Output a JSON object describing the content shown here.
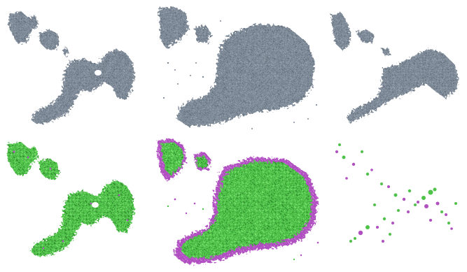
{
  "figure": {
    "panels": [
      {
        "id": "p1",
        "name": "panel-top-left",
        "coloring": "uniform",
        "particle_color": "#7e8a98"
      },
      {
        "id": "p2",
        "name": "panel-top-center",
        "coloring": "uniform",
        "particle_color": "#7e8a98"
      },
      {
        "id": "p3",
        "name": "panel-top-right",
        "coloring": "uniform",
        "particle_color": "#7e8a98"
      },
      {
        "id": "p4",
        "name": "panel-bottom-left",
        "coloring": "two-species",
        "colors": [
          "#4fc24a",
          "#b04fc0"
        ]
      },
      {
        "id": "p5",
        "name": "panel-bottom-center",
        "coloring": "two-species",
        "colors": [
          "#4fc24a",
          "#b04fc0"
        ]
      },
      {
        "id": "p6",
        "name": "panel-bottom-right",
        "coloring": "sparse-two-species",
        "colors": [
          "#4fc24a",
          "#b04fc0"
        ]
      }
    ]
  }
}
